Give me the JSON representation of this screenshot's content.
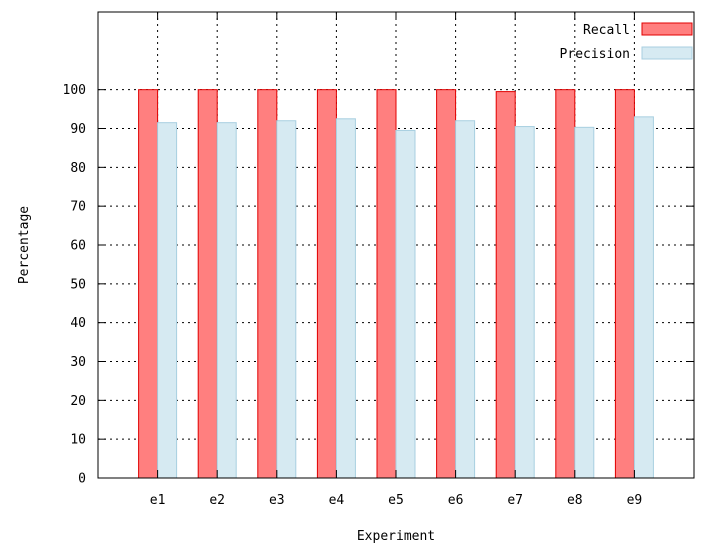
{
  "chart_data": {
    "type": "bar",
    "title": "",
    "xlabel": "Experiment",
    "ylabel": "Percentage",
    "categories": [
      "e1",
      "e2",
      "e3",
      "e4",
      "e5",
      "e6",
      "e7",
      "e8",
      "e9"
    ],
    "series": [
      {
        "name": "Recall",
        "color": "#ff7f7f",
        "edge": "#e00000",
        "values": [
          100,
          100,
          100,
          100,
          100,
          100,
          99.5,
          100,
          100
        ]
      },
      {
        "name": "Precision",
        "color": "#d6eaf2",
        "edge": "#a8cfe0",
        "values": [
          91.5,
          91.5,
          92,
          92.5,
          89.5,
          92,
          90.5,
          90.3,
          93
        ]
      }
    ],
    "ylim": [
      0,
      120
    ],
    "yticks": [
      "0",
      "10",
      "20",
      "30",
      "40",
      "50",
      "60",
      "70",
      "80",
      "90",
      "100"
    ],
    "grid": true,
    "legend_position": "top-right"
  }
}
